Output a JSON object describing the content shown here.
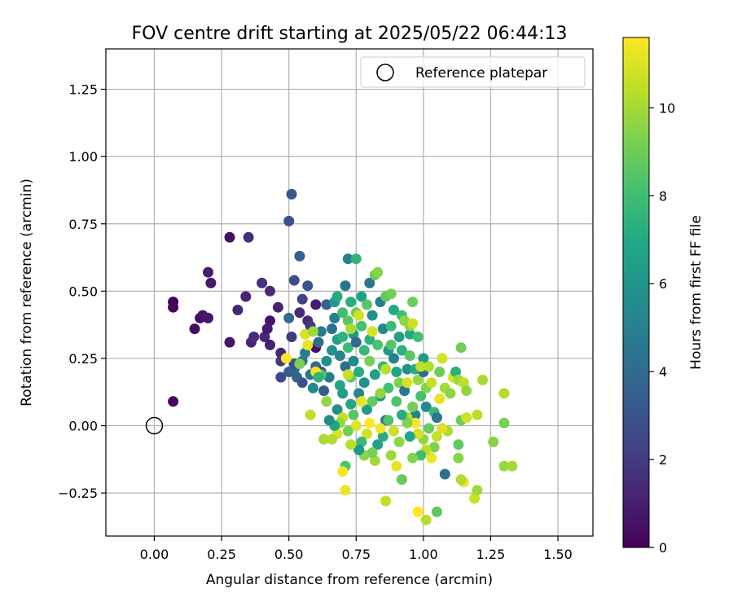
{
  "chart_data": {
    "type": "scatter",
    "title": "FOV centre drift starting at 2025/05/22 06:44:13",
    "xlabel": "Angular distance from reference (arcmin)",
    "ylabel": "Rotation from reference (arcmin)",
    "xlim": [
      -0.18,
      1.63
    ],
    "ylim": [
      -0.41,
      1.4
    ],
    "xticks": [
      0.0,
      0.25,
      0.5,
      0.75,
      1.0,
      1.25,
      1.5
    ],
    "xtick_labels": [
      "0.00",
      "0.25",
      "0.50",
      "0.75",
      "1.00",
      "1.25",
      "1.50"
    ],
    "yticks": [
      -0.25,
      0.0,
      0.25,
      0.5,
      0.75,
      1.0,
      1.25
    ],
    "ytick_labels": [
      "−0.25",
      "0.00",
      "0.25",
      "0.50",
      "0.75",
      "1.00",
      "1.25"
    ],
    "grid": true,
    "legend": {
      "location": "top-right",
      "entries": [
        "Reference platepar"
      ]
    },
    "reference_point": {
      "x": 0.0,
      "y": 0.0,
      "label": "Reference platepar"
    },
    "colorbar": {
      "label": "Hours from first FF file",
      "colormap": "viridis",
      "range": [
        0,
        11.6
      ],
      "ticks": [
        0,
        2,
        4,
        6,
        8,
        10
      ],
      "tick_labels": [
        "0",
        "2",
        "4",
        "6",
        "8",
        "10"
      ]
    },
    "series": [
      {
        "name": "FOV centre drift",
        "points": [
          [
            0.07,
            0.46,
            0.1
          ],
          [
            0.07,
            0.44,
            0.2
          ],
          [
            0.07,
            0.09,
            0.3
          ],
          [
            0.15,
            0.36,
            0.4
          ],
          [
            0.17,
            0.4,
            0.5
          ],
          [
            0.18,
            0.41,
            0.6
          ],
          [
            0.2,
            0.4,
            0.7
          ],
          [
            0.21,
            0.53,
            0.8
          ],
          [
            0.2,
            0.57,
            1.0
          ],
          [
            0.28,
            0.7,
            0.5
          ],
          [
            0.28,
            0.31,
            0.6
          ],
          [
            0.31,
            0.43,
            1.3
          ],
          [
            0.35,
            0.7,
            1.6
          ],
          [
            0.34,
            0.48,
            1.1
          ],
          [
            0.36,
            0.31,
            1.2
          ],
          [
            0.37,
            0.33,
            1.5
          ],
          [
            0.4,
            0.53,
            1.7
          ],
          [
            0.41,
            0.33,
            1.3
          ],
          [
            0.42,
            0.36,
            0.9
          ],
          [
            0.43,
            0.5,
            1.4
          ],
          [
            0.43,
            0.39,
            0.7
          ],
          [
            0.43,
            0.3,
            1.0
          ],
          [
            0.46,
            0.44,
            1.1
          ],
          [
            0.47,
            0.27,
            1.2
          ],
          [
            0.47,
            0.24,
            1.9
          ],
          [
            0.47,
            0.18,
            2.4
          ],
          [
            0.5,
            0.76,
            3.0
          ],
          [
            0.51,
            0.86,
            3.2
          ],
          [
            0.51,
            0.33,
            2.0
          ],
          [
            0.52,
            0.54,
            2.8
          ],
          [
            0.54,
            0.63,
            3.5
          ],
          [
            0.54,
            0.42,
            1.5
          ],
          [
            0.55,
            0.47,
            2.2
          ],
          [
            0.57,
            0.52,
            3.0
          ],
          [
            0.57,
            0.39,
            1.4
          ],
          [
            0.58,
            0.37,
            1.8
          ],
          [
            0.6,
            0.29,
            0.6
          ],
          [
            0.6,
            0.45,
            0.9
          ],
          [
            0.5,
            0.2,
            3.4
          ],
          [
            0.5,
            0.4,
            4.0
          ],
          [
            0.52,
            0.21,
            3.8
          ],
          [
            0.52,
            0.23,
            2.9
          ],
          [
            0.53,
            0.18,
            3.6
          ],
          [
            0.55,
            0.16,
            3.0
          ],
          [
            0.55,
            0.24,
            4.4
          ],
          [
            0.56,
            0.27,
            5.0
          ],
          [
            0.58,
            0.19,
            4.6
          ],
          [
            0.59,
            0.14,
            5.4
          ],
          [
            0.6,
            0.22,
            3.9
          ],
          [
            0.61,
            0.31,
            4.2
          ],
          [
            0.62,
            0.35,
            4.7
          ],
          [
            0.62,
            0.2,
            2.5
          ],
          [
            0.63,
            0.13,
            3.3
          ],
          [
            0.64,
            0.45,
            3.5
          ],
          [
            0.64,
            0.24,
            5.8
          ],
          [
            0.65,
            0.18,
            4.8
          ],
          [
            0.66,
            0.28,
            6.0
          ],
          [
            0.66,
            0.36,
            4.3
          ],
          [
            0.67,
            0.4,
            4.9
          ],
          [
            0.67,
            0.46,
            6.2
          ],
          [
            0.68,
            0.48,
            7.0
          ],
          [
            0.68,
            0.32,
            6.6
          ],
          [
            0.68,
            0.06,
            5.6
          ],
          [
            0.69,
            0.15,
            6.8
          ],
          [
            0.69,
            0.26,
            5.2
          ],
          [
            0.7,
            0.33,
            7.4
          ],
          [
            0.7,
            0.42,
            8.0
          ],
          [
            0.7,
            0.12,
            6.4
          ],
          [
            0.71,
            0.22,
            4.1
          ],
          [
            0.71,
            0.52,
            4.5
          ],
          [
            0.72,
            0.62,
            5.1
          ],
          [
            0.72,
            0.29,
            7.8
          ],
          [
            0.72,
            0.39,
            8.5
          ],
          [
            0.73,
            0.46,
            7.2
          ],
          [
            0.73,
            0.18,
            8.8
          ],
          [
            0.73,
            0.08,
            6.9
          ],
          [
            0.74,
            0.34,
            6.1
          ],
          [
            0.74,
            0.24,
            5.5
          ],
          [
            0.75,
            0.62,
            7.5
          ],
          [
            0.75,
            0.42,
            9.0
          ],
          [
            0.75,
            0.31,
            4.0
          ],
          [
            0.76,
            0.12,
            5.3
          ],
          [
            0.76,
            0.2,
            7.1
          ],
          [
            0.77,
            0.37,
            8.2
          ],
          [
            0.77,
            0.48,
            6.7
          ],
          [
            0.78,
            0.28,
            7.7
          ],
          [
            0.78,
            0.16,
            5.9
          ],
          [
            0.79,
            0.06,
            6.3
          ],
          [
            0.79,
            0.45,
            8.6
          ],
          [
            0.8,
            0.53,
            4.4
          ],
          [
            0.8,
            0.32,
            7.3
          ],
          [
            0.8,
            0.24,
            9.2
          ],
          [
            0.81,
            0.41,
            5.7
          ],
          [
            0.82,
            0.19,
            6.5
          ],
          [
            0.82,
            0.56,
            8.9
          ],
          [
            0.83,
            0.57,
            9.5
          ],
          [
            0.83,
            0.3,
            8.3
          ],
          [
            0.84,
            0.46,
            4.9
          ],
          [
            0.84,
            0.11,
            6.0
          ],
          [
            0.85,
            0.22,
            7.6
          ],
          [
            0.85,
            0.36,
            5.4
          ],
          [
            0.86,
            0.48,
            8.7
          ],
          [
            0.86,
            0.02,
            4.3
          ],
          [
            0.87,
            0.28,
            6.2
          ],
          [
            0.87,
            0.14,
            8.1
          ],
          [
            0.88,
            0.37,
            7.9
          ],
          [
            0.88,
            0.49,
            9.1
          ],
          [
            0.89,
            0.25,
            5.1
          ],
          [
            0.89,
            0.43,
            7.0
          ],
          [
            0.9,
            0.2,
            6.8
          ],
          [
            0.9,
            0.09,
            8.4
          ],
          [
            0.91,
            0.33,
            6.6
          ],
          [
            0.91,
            0.16,
            9.3
          ],
          [
            0.92,
            0.41,
            8.0
          ],
          [
            0.92,
            0.28,
            7.4
          ],
          [
            0.93,
            0.39,
            9.6
          ],
          [
            0.93,
            0.13,
            4.7
          ],
          [
            0.94,
            0.21,
            5.8
          ],
          [
            0.95,
            0.26,
            8.6
          ],
          [
            0.95,
            0.34,
            6.9
          ],
          [
            0.96,
            0.46,
            9.0
          ],
          [
            0.97,
            0.04,
            5.2
          ],
          [
            0.97,
            0.21,
            7.1
          ],
          [
            0.98,
            0.17,
            9.8
          ],
          [
            0.99,
            0.11,
            8.2
          ],
          [
            1.0,
            0.25,
            6.3
          ],
          [
            1.0,
            0.2,
            4.2
          ],
          [
            1.01,
            0.07,
            5.5
          ],
          [
            1.01,
            0.14,
            9.4
          ],
          [
            1.02,
            0.22,
            10.2
          ],
          [
            1.03,
            0.16,
            10.6
          ],
          [
            1.04,
            0.05,
            7.7
          ],
          [
            1.05,
            0.03,
            4.6
          ],
          [
            1.06,
            0.2,
            9.0
          ],
          [
            1.06,
            0.1,
            11.2
          ],
          [
            1.07,
            0.25,
            10.8
          ],
          [
            1.08,
            0.14,
            10.0
          ],
          [
            1.1,
            0.12,
            9.6
          ],
          [
            1.11,
            0.18,
            11.0
          ],
          [
            1.12,
            0.2,
            7.3
          ],
          [
            1.13,
            0.17,
            9.9
          ],
          [
            1.14,
            0.29,
            9.1
          ],
          [
            1.15,
            0.16,
            10.5
          ],
          [
            1.16,
            0.13,
            9.7
          ],
          [
            1.22,
            0.17,
            10.1
          ],
          [
            1.26,
            -0.06,
            9.5
          ],
          [
            1.3,
            0.12,
            10.3
          ],
          [
            1.3,
            0.01,
            9.2
          ],
          [
            1.3,
            -0.15,
            9.8
          ],
          [
            1.33,
            -0.15,
            10.0
          ],
          [
            1.2,
            0.04,
            10.4
          ],
          [
            1.19,
            -0.27,
            10.7
          ],
          [
            1.2,
            -0.24,
            9.9
          ],
          [
            1.15,
            -0.21,
            11.4
          ],
          [
            1.14,
            -0.2,
            10.2
          ],
          [
            1.14,
            0.02,
            9.0
          ],
          [
            1.16,
            0.03,
            10.8
          ],
          [
            1.13,
            -0.07,
            8.7
          ],
          [
            1.13,
            -0.12,
            9.5
          ],
          [
            1.08,
            -0.18,
            4.2
          ],
          [
            1.09,
            -0.02,
            10.1
          ],
          [
            1.07,
            -0.01,
            11.0
          ],
          [
            1.05,
            -0.04,
            10.6
          ],
          [
            1.04,
            -0.08,
            9.3
          ],
          [
            1.03,
            -0.12,
            11.3
          ],
          [
            1.02,
            -0.01,
            8.9
          ],
          [
            1.01,
            -0.09,
            10.4
          ],
          [
            1.0,
            -0.05,
            9.7
          ],
          [
            0.99,
            -0.11,
            8.0
          ],
          [
            0.98,
            -0.03,
            10.9
          ],
          [
            0.97,
            0.01,
            11.5
          ],
          [
            0.96,
            -0.12,
            9.4
          ],
          [
            0.95,
            -0.04,
            6.9
          ],
          [
            0.94,
            0.03,
            10.3
          ],
          [
            0.92,
            -0.2,
            8.8
          ],
          [
            0.91,
            -0.06,
            9.6
          ],
          [
            0.9,
            -0.15,
            11.2
          ],
          [
            0.89,
            -0.02,
            10.7
          ],
          [
            0.88,
            -0.11,
            9.9
          ],
          [
            0.87,
            0.02,
            8.4
          ],
          [
            0.86,
            -0.28,
            10.5
          ],
          [
            0.85,
            -0.04,
            7.2
          ],
          [
            0.84,
            -0.01,
            11.4
          ],
          [
            0.83,
            -0.07,
            6.5
          ],
          [
            0.82,
            -0.13,
            10.0
          ],
          [
            0.81,
            -0.1,
            9.2
          ],
          [
            0.8,
            0.01,
            11.6
          ],
          [
            0.79,
            -0.03,
            10.8
          ],
          [
            0.78,
            -0.11,
            9.5
          ],
          [
            0.77,
            -0.06,
            7.8
          ],
          [
            0.76,
            -0.09,
            6.2
          ],
          [
            0.75,
            0.0,
            11.1
          ],
          [
            0.74,
            0.04,
            8.6
          ],
          [
            0.73,
            -0.07,
            10.4
          ],
          [
            0.72,
            -0.02,
            9.1
          ],
          [
            0.71,
            -0.24,
            11.3
          ],
          [
            0.71,
            -0.15,
            8.3
          ],
          [
            0.7,
            -0.17,
            11.5
          ],
          [
            0.7,
            0.03,
            10.6
          ],
          [
            0.69,
            0.01,
            9.8
          ],
          [
            0.68,
            -0.03,
            11.0
          ],
          [
            0.67,
            0.0,
            6.8
          ],
          [
            0.66,
            -0.05,
            10.2
          ],
          [
            0.65,
            0.02,
            5.6
          ],
          [
            0.64,
            0.09,
            9.7
          ],
          [
            0.63,
            -0.05,
            10.1
          ],
          [
            0.62,
            0.19,
            8.4
          ],
          [
            0.6,
            0.2,
            11.4
          ],
          [
            0.58,
            0.04,
            10.5
          ],
          [
            0.57,
            0.3,
            11.3
          ],
          [
            0.56,
            0.34,
            10.9
          ],
          [
            0.54,
            0.23,
            9.3
          ],
          [
            0.49,
            0.25,
            11.6
          ],
          [
            0.59,
            0.35,
            9.9
          ],
          [
            0.61,
            0.18,
            7.5
          ],
          [
            0.95,
            0.37,
            9.5
          ],
          [
            0.96,
            0.38,
            10.7
          ],
          [
            0.98,
            -0.32,
            11.6
          ],
          [
            1.01,
            -0.35,
            10.3
          ],
          [
            1.05,
            -0.32,
            8.7
          ],
          [
            0.99,
            0.22,
            10.5
          ],
          [
            0.94,
            0.01,
            9.4
          ],
          [
            0.81,
            0.35,
            10.9
          ],
          [
            0.77,
            0.09,
            11.2
          ],
          [
            0.72,
            0.19,
            10.6
          ],
          [
            0.73,
            0.36,
            10.1
          ],
          [
            0.76,
            0.41,
            10.8
          ],
          [
            0.81,
            0.09,
            8.7
          ],
          [
            0.84,
            0.12,
            9.7
          ],
          [
            0.86,
            0.21,
            10.4
          ],
          [
            0.88,
            0.3,
            8.5
          ],
          [
            0.92,
            0.04,
            7.2
          ],
          [
            0.94,
            0.16,
            10.9
          ],
          [
            0.96,
            0.07,
            9.1
          ],
          [
            0.98,
            0.33,
            8.1
          ]
        ]
      }
    ]
  }
}
